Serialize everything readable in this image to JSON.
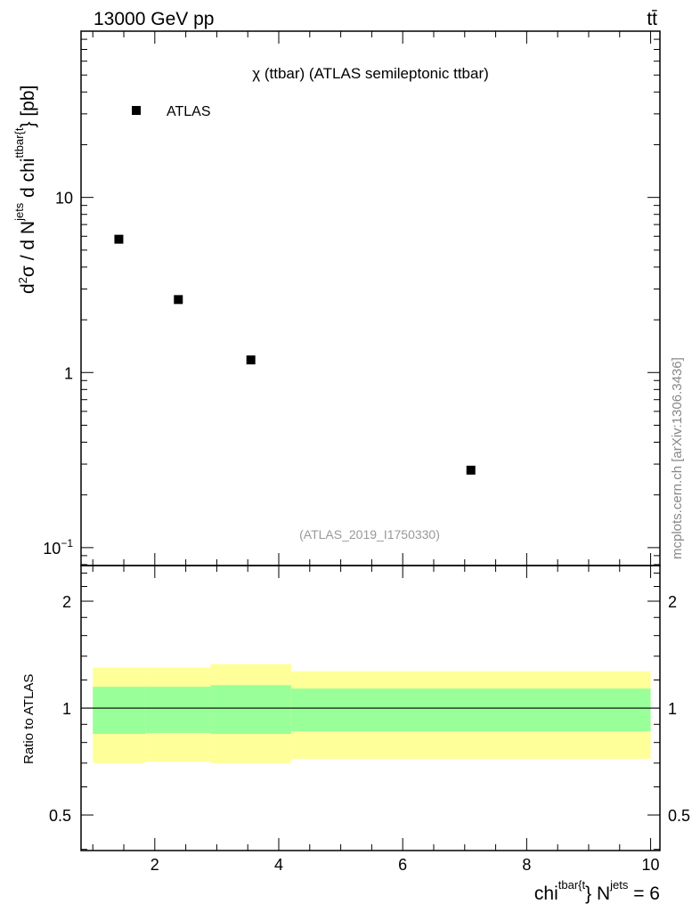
{
  "header": {
    "left": "13000 GeV pp",
    "right": "tt̄"
  },
  "side_label": "mcplots.cern.ch [arXiv:1306.3436]",
  "chart_data": [
    {
      "type": "scatter",
      "title": "χ (ttbar) (ATLAS semileptonic ttbar)",
      "ylabel": "d²σ / d N^jets d chi^ttbar{t}} [pb]",
      "ylabel_parts": {
        "a": "d",
        "b": "2",
        "c": "σ / d N",
        "d": "jets",
        "e": " d chi",
        "f": "ttbar{t",
        "g": "} [pb]"
      },
      "yscale": "log",
      "ylim": [
        0.079,
        89
      ],
      "xlim": [
        0.81,
        10.15
      ],
      "yticks": [
        {
          "v": 0.1,
          "label_base": "10",
          "label_exp": "−1"
        },
        {
          "v": 1,
          "label": "1"
        },
        {
          "v": 10,
          "label": "10"
        }
      ],
      "legend": {
        "position": "top-left",
        "entries": [
          "ATLAS"
        ]
      },
      "annotation": "(ATLAS_2019_I1750330)",
      "series": [
        {
          "name": "ATLAS",
          "x": [
            1.42,
            2.38,
            3.55,
            7.1
          ],
          "y": [
            5.77,
            2.61,
            1.18,
            0.277
          ]
        }
      ]
    },
    {
      "type": "area",
      "ylabel": "Ratio to ATLAS",
      "yscale": "log",
      "ylim": [
        0.397,
        2.52
      ],
      "xlim": [
        0.81,
        10.15
      ],
      "xlabel_parts": {
        "a": "chi",
        "b": "tbar{t",
        "c": "} N",
        "d": "jets",
        "e": " = 6"
      },
      "xticks": [
        2,
        4,
        6,
        8,
        10
      ],
      "yticks": [
        0.5,
        1,
        2
      ],
      "bin_edges": [
        1.0,
        1.85,
        2.9,
        4.2,
        10.0
      ],
      "band_outer": {
        "lo": [
          0.7,
          0.707,
          0.7,
          0.72
        ],
        "hi": [
          1.3,
          1.3,
          1.33,
          1.27
        ],
        "color": "#ffff99"
      },
      "band_inner": {
        "lo": [
          0.846,
          0.851,
          0.846,
          0.86
        ],
        "hi": [
          1.148,
          1.148,
          1.16,
          1.135
        ],
        "color": "#99ff99"
      },
      "reference_line": 1
    }
  ]
}
